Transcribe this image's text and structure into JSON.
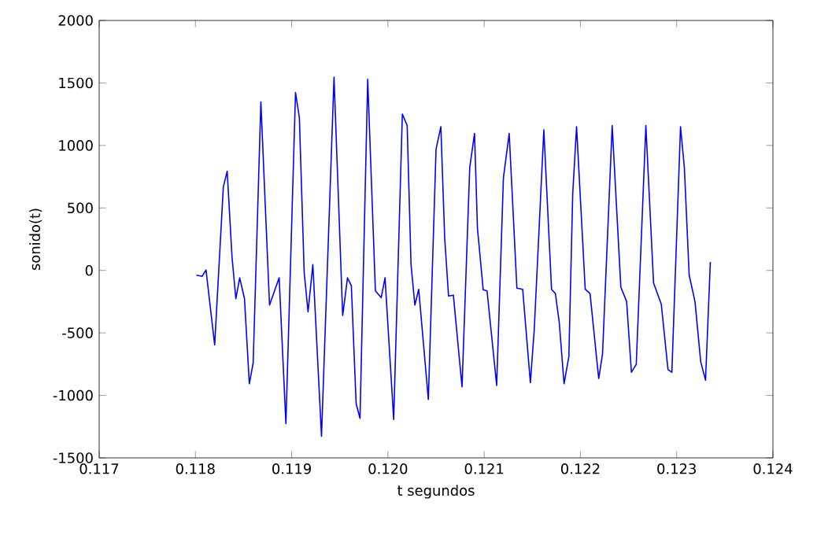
{
  "chart_data": {
    "type": "line",
    "xlabel": "t segundos",
    "ylabel": "sonido(t)",
    "xlim": [
      0.117,
      0.124
    ],
    "ylim": [
      -1500,
      2000
    ],
    "xticks": [
      0.117,
      0.118,
      0.119,
      {
        "value": 0.12,
        "label": "0.120"
      },
      0.121,
      0.122,
      0.123,
      0.124
    ],
    "yticks": [
      -1500,
      -1000,
      -500,
      0,
      500,
      1000,
      1500,
      2000
    ],
    "grid": false,
    "marker": "none",
    "line_style": "solid",
    "series": [
      {
        "color": "#0000ff",
        "x": [
          0.11801,
          0.11807,
          0.11811,
          0.1182,
          0.11829,
          0.11833,
          0.11838,
          0.11842,
          0.11846,
          0.11851,
          0.11856,
          0.1186,
          0.11868,
          0.11877,
          0.11887,
          0.11894,
          0.11904,
          0.11908,
          0.11913,
          0.11917,
          0.11922,
          0.11931,
          0.11944,
          0.11953,
          0.11958,
          0.11962,
          0.11967,
          0.11971,
          0.11979,
          0.11987,
          0.11993,
          0.11997,
          0.12006,
          0.12015,
          0.1202,
          0.12024,
          0.12028,
          0.12032,
          0.12042,
          0.1205,
          0.12055,
          0.12059,
          0.12063,
          0.12068,
          0.12077,
          0.12085,
          0.1209,
          0.12093,
          0.12099,
          0.12103,
          0.12113,
          0.1212,
          0.12126,
          0.12134,
          0.1214,
          0.12148,
          0.12152,
          0.12162,
          0.1217,
          0.12174,
          0.12178,
          0.12183,
          0.12188,
          0.12192,
          0.12196,
          0.12205,
          0.1221,
          0.12219,
          0.12223,
          0.12233,
          0.12242,
          0.12248,
          0.12253,
          0.12258,
          0.12268,
          0.12276,
          0.12284,
          0.12291,
          0.12295,
          0.12304,
          0.12308,
          0.12313,
          0.12319,
          0.12325,
          0.1233,
          0.12335
        ],
        "values": [
          -38,
          -47,
          4,
          -596,
          668,
          794,
          110,
          -227,
          -59,
          -227,
          -907,
          -740,
          1348,
          -277,
          -59,
          -1226,
          1424,
          1222,
          -16,
          -331,
          47,
          -1327,
          1546,
          -361,
          -59,
          -122,
          -1067,
          -1184,
          1529,
          -164,
          -218,
          -59,
          -1193,
          1251,
          1159,
          47,
          -277,
          -151,
          -1033,
          970,
          1150,
          256,
          -205,
          -198,
          -932,
          823,
          1096,
          340,
          -155,
          -164,
          -920,
          740,
          1096,
          -142,
          -151,
          -898,
          -479,
          1125,
          -151,
          -185,
          -416,
          -907,
          -689,
          613,
          1150,
          -151,
          -185,
          -865,
          -668,
          1159,
          -134,
          -248,
          -815,
          -752,
          1159,
          -101,
          -269,
          -794,
          -815,
          1150,
          823,
          -38,
          -248,
          -731,
          -878,
          67
        ]
      }
    ]
  }
}
